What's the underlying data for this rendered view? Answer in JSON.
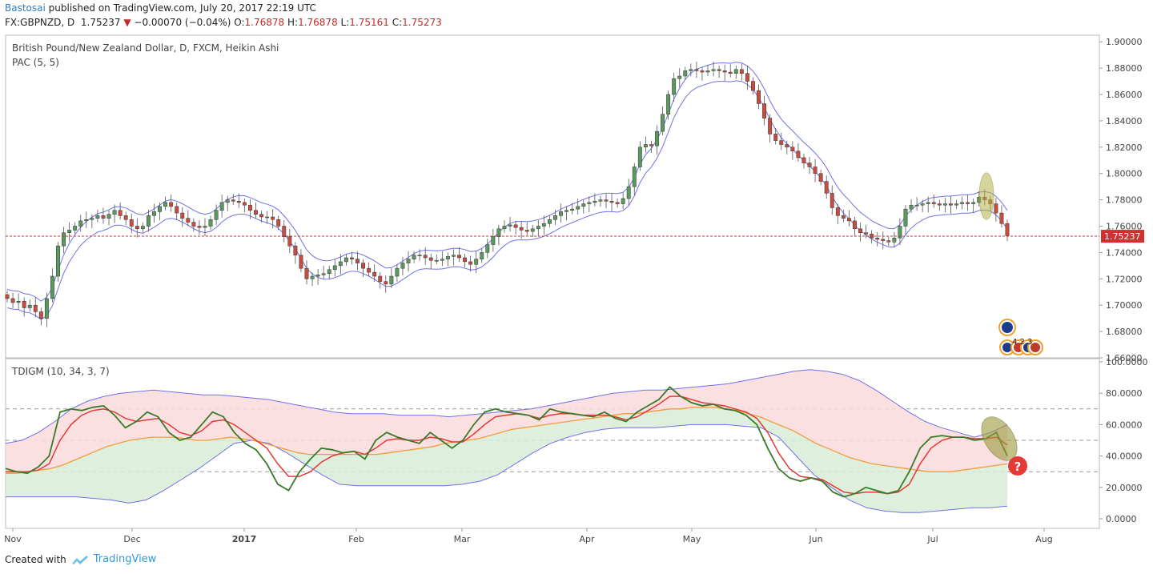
{
  "header": {
    "user": "Bastosai",
    "published": " published on TradingView.com, July 20, 2017 22:19 UTC",
    "symbol": "FX:GBPNZD, D",
    "last": "1.75237",
    "change": "−0.00070 (−0.04%)",
    "o_label": "O:",
    "o": "1.76878",
    "h_label": "H:",
    "h": "1.76878",
    "l_label": "L:",
    "l": "1.75161",
    "c_label": "C:",
    "c": "1.75273"
  },
  "price_pane": {
    "title": "British Pound/New Zealand Dollar, D, FXCM, Heikin Ashi",
    "indicator": "PAC (5, 5)",
    "current_price_label": "1.75237",
    "event_badge_text": "4  2 3"
  },
  "osc_pane": {
    "title": "TDIGM (10, 34, 3, 7)"
  },
  "footer": {
    "created_with": "Created with",
    "brand": "TradingView"
  },
  "colors": {
    "up": "#5a9a5f",
    "down": "#c94c40",
    "envelope": "#6f72e6",
    "price_line": "#d32f2f",
    "rsi": "#3a7a28",
    "signal": "#e53935",
    "midband": "#f39c3b",
    "fill_upper": "#fadadd",
    "fill_lower": "#d8ecd8"
  },
  "chart_data": [
    {
      "type": "candlestick",
      "title": "British Pound/New Zealand Dollar, D, FXCM, Heikin Ashi",
      "x_ticks": [
        "Nov",
        "Dec",
        "2017",
        "Feb",
        "Mar",
        "Apr",
        "May",
        "Jun",
        "Jul",
        "Aug"
      ],
      "y_ticks": [
        "1.90000",
        "1.88000",
        "1.86000",
        "1.84000",
        "1.82000",
        "1.80000",
        "1.78000",
        "1.76000",
        "1.74000",
        "1.72000",
        "1.70000",
        "1.68000",
        "1.66000"
      ],
      "ylim": [
        1.66,
        1.905
      ],
      "current_price": 1.75237,
      "series_close": [
        1.705,
        1.702,
        1.703,
        1.698,
        1.7,
        1.695,
        1.69,
        1.705,
        1.722,
        1.745,
        1.755,
        1.757,
        1.76,
        1.764,
        1.765,
        1.766,
        1.768,
        1.766,
        1.769,
        1.772,
        1.768,
        1.765,
        1.76,
        1.758,
        1.76,
        1.768,
        1.771,
        1.775,
        1.778,
        1.775,
        1.77,
        1.766,
        1.763,
        1.76,
        1.759,
        1.76,
        1.765,
        1.772,
        1.778,
        1.78,
        1.779,
        1.778,
        1.776,
        1.772,
        1.769,
        1.767,
        1.767,
        1.765,
        1.76,
        1.752,
        1.745,
        1.738,
        1.728,
        1.72,
        1.722,
        1.723,
        1.724,
        1.727,
        1.73,
        1.733,
        1.736,
        1.735,
        1.732,
        1.728,
        1.725,
        1.722,
        1.718,
        1.716,
        1.722,
        1.728,
        1.732,
        1.735,
        1.738,
        1.738,
        1.736,
        1.734,
        1.734,
        1.735,
        1.737,
        1.738,
        1.736,
        1.733,
        1.731,
        1.735,
        1.74,
        1.746,
        1.752,
        1.758,
        1.76,
        1.761,
        1.759,
        1.757,
        1.756,
        1.758,
        1.76,
        1.762,
        1.765,
        1.768,
        1.771,
        1.772,
        1.773,
        1.775,
        1.777,
        1.778,
        1.779,
        1.78,
        1.779,
        1.778,
        1.777,
        1.781,
        1.79,
        1.805,
        1.82,
        1.822,
        1.821,
        1.832,
        1.845,
        1.86,
        1.872,
        1.874,
        1.878,
        1.879,
        1.878,
        1.877,
        1.878,
        1.879,
        1.878,
        1.877,
        1.876,
        1.879,
        1.876,
        1.87,
        1.863,
        1.853,
        1.842,
        1.83,
        1.825,
        1.822,
        1.82,
        1.817,
        1.812,
        1.808,
        1.805,
        1.8,
        1.794,
        1.785,
        1.774,
        1.768,
        1.766,
        1.764,
        1.758,
        1.755,
        1.754,
        1.751,
        1.75,
        1.749,
        1.748,
        1.751,
        1.76,
        1.773,
        1.776,
        1.776,
        1.777,
        1.778,
        1.777,
        1.776,
        1.777,
        1.776,
        1.777,
        1.778,
        1.777,
        1.778,
        1.782,
        1.78,
        1.777,
        1.77,
        1.762,
        1.75273
      ]
    },
    {
      "type": "line",
      "title": "TDIGM (10, 34, 3, 7)",
      "y_ticks": [
        "100.0000",
        "80.0000",
        "60.0000",
        "40.0000",
        "20.0000",
        "0.0000"
      ],
      "ylim": [
        0,
        100
      ],
      "levels": [
        70,
        50,
        30
      ],
      "series": [
        {
          "name": "",
          "role": "rsi",
          "values": [
            32,
            30,
            29,
            33,
            40,
            68,
            70,
            69,
            71,
            72,
            66,
            58,
            62,
            68,
            65,
            55,
            50,
            52,
            60,
            68,
            65,
            55,
            48,
            44,
            35,
            22,
            18,
            30,
            38,
            45,
            44,
            42,
            43,
            38,
            50,
            55,
            52,
            50,
            48,
            55,
            50,
            45,
            50,
            60,
            68,
            70,
            68,
            67,
            66,
            63,
            70,
            68,
            67,
            66,
            65,
            68,
            64,
            62,
            68,
            72,
            76,
            84,
            78,
            74,
            72,
            73,
            70,
            69,
            66,
            60,
            45,
            32,
            26,
            24,
            26,
            24,
            17,
            14,
            16,
            20,
            18,
            16,
            18,
            30,
            45,
            52,
            53,
            52,
            52,
            50,
            51,
            55,
            40
          ]
        },
        {
          "name": "",
          "role": "signal",
          "values": [
            30,
            30,
            30,
            31,
            35,
            50,
            60,
            66,
            69,
            70,
            68,
            64,
            62,
            63,
            64,
            60,
            55,
            53,
            56,
            62,
            63,
            60,
            55,
            50,
            45,
            35,
            27,
            27,
            30,
            36,
            40,
            42,
            43,
            41,
            45,
            50,
            51,
            50,
            50,
            52,
            51,
            49,
            49,
            54,
            60,
            65,
            66,
            67,
            66,
            64,
            66,
            67,
            67,
            66,
            66,
            66,
            65,
            63,
            65,
            69,
            73,
            78,
            78,
            76,
            74,
            73,
            72,
            70,
            68,
            64,
            55,
            42,
            32,
            27,
            26,
            25,
            21,
            17,
            16,
            17,
            17,
            16,
            17,
            22,
            35,
            45,
            50,
            52,
            52,
            51,
            51,
            52,
            47
          ]
        },
        {
          "name": "",
          "role": "mid",
          "values": [
            29,
            29,
            30,
            31,
            32,
            34,
            37,
            40,
            43,
            46,
            48,
            50,
            51,
            52,
            52,
            52,
            51,
            50,
            50,
            51,
            52,
            51,
            50,
            48,
            46,
            44,
            42,
            41,
            41,
            41,
            41,
            41,
            41,
            41,
            42,
            43,
            44,
            45,
            46,
            48,
            49,
            50,
            51,
            53,
            55,
            57,
            58,
            59,
            60,
            61,
            62,
            63,
            64,
            65,
            66,
            67,
            67,
            68,
            69,
            70,
            70,
            71,
            71,
            71,
            70,
            69,
            67,
            65,
            62,
            59,
            56,
            52,
            48,
            45,
            42,
            39,
            37,
            35,
            34,
            33,
            32,
            31,
            30,
            30,
            30,
            31,
            32,
            33,
            34,
            35
          ]
        },
        {
          "name": "",
          "role": "upper_band",
          "values": [
            48,
            50,
            55,
            62,
            70,
            75,
            78,
            80,
            81,
            82,
            81,
            80,
            79,
            79,
            78,
            77,
            76,
            74,
            72,
            70,
            68,
            67,
            67,
            67,
            66,
            66,
            66,
            65,
            66,
            67,
            68,
            69,
            70,
            72,
            74,
            76,
            78,
            80,
            81,
            82,
            82,
            83,
            84,
            85,
            86,
            88,
            90,
            92,
            94,
            95,
            94,
            92,
            88,
            82,
            75,
            68,
            62,
            58,
            55,
            52,
            55,
            60
          ]
        },
        {
          "name": "",
          "role": "lower_band",
          "values": [
            14,
            14,
            14,
            14,
            14,
            13,
            12,
            10,
            12,
            18,
            25,
            32,
            40,
            48,
            50,
            48,
            42,
            35,
            28,
            22,
            21,
            21,
            21,
            21,
            21,
            21,
            22,
            24,
            28,
            35,
            42,
            48,
            52,
            55,
            57,
            58,
            58,
            58,
            59,
            60,
            60,
            60,
            59,
            58,
            52,
            40,
            28,
            20,
            12,
            7,
            5,
            4,
            4,
            5,
            6,
            7,
            7,
            8
          ]
        }
      ]
    }
  ]
}
